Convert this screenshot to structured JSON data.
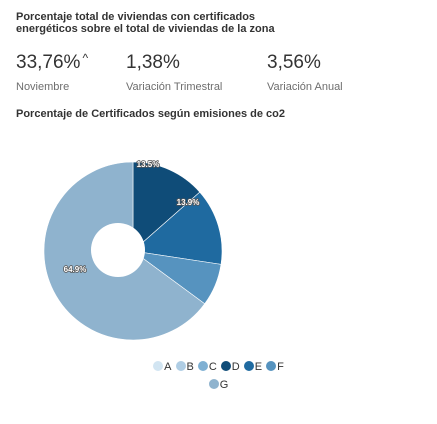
{
  "header": {
    "title": "Porcentaje total de viviendas con certificados energéticos sobre el total de viviendas de la zona"
  },
  "stats": [
    {
      "value": "33,76%",
      "label": "Noviembre",
      "trend_icon": "caret-up-icon",
      "trend_glyph": "^"
    },
    {
      "value": "1,38%",
      "label": "Variación Trimestral"
    },
    {
      "value": "3,56%",
      "label": "Variación Anual"
    }
  ],
  "chart_data": {
    "type": "pie",
    "title": "Porcentaje de Certificados según emisiones de co2",
    "unit": "%",
    "legend_position": "bottom",
    "categories": [
      "A",
      "B",
      "C",
      "D",
      "E",
      "F",
      "G"
    ],
    "values": [
      0,
      0,
      0,
      13.5,
      13.9,
      7.7,
      64.9
    ],
    "labels": [
      "",
      "",
      "",
      "13.5%",
      "13.9%",
      "",
      "64.9%"
    ],
    "colors": [
      "#d2e5f2",
      "#afcde4",
      "#7fb0d3",
      "#0f4c78",
      "#1f6aa0",
      "#5693bf",
      "#8fb3ce"
    ]
  }
}
